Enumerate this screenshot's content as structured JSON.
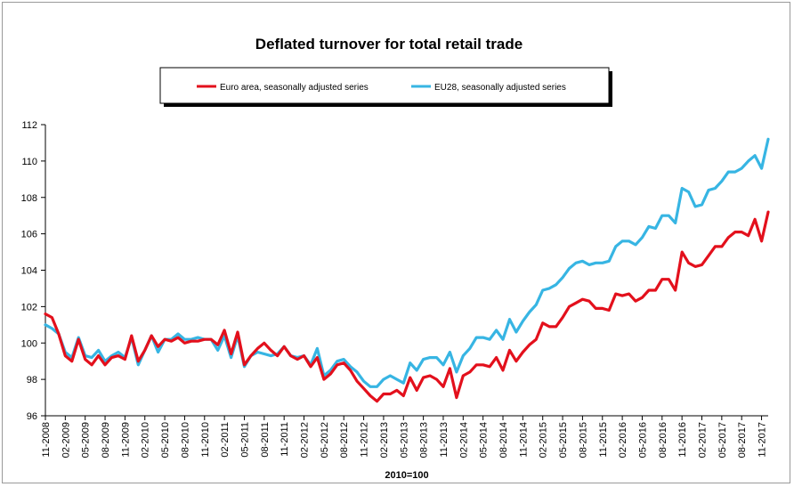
{
  "chart_data": {
    "type": "line",
    "title": "Deflated turnover for total retail trade",
    "xlabel": "2010=100",
    "ylabel": "",
    "ylim": [
      96,
      112
    ],
    "yticks": [
      96,
      98,
      100,
      102,
      104,
      106,
      108,
      110,
      112
    ],
    "grid": false,
    "legend_position": "top",
    "x_tick_labels": [
      "11-2008",
      "02-2009",
      "05-2009",
      "08-2009",
      "11-2009",
      "02-2010",
      "05-2010",
      "08-2010",
      "11-2010",
      "02-2011",
      "05-2011",
      "08-2011",
      "11-2011",
      "02-2012",
      "05-2012",
      "08-2012",
      "11-2012",
      "02-2013",
      "05-2013",
      "08-2013",
      "11-2013",
      "02-2014",
      "05-2014",
      "08-2014",
      "11-2014",
      "02-2015",
      "05-2015",
      "08-2015",
      "11-2015",
      "02-2016",
      "05-2016",
      "08-2016",
      "11-2016",
      "02-2017",
      "05-2017",
      "08-2017",
      "11-2017"
    ],
    "series": [
      {
        "name": "Euro area, seasonally adjusted series",
        "color": "#e3101c",
        "values": [
          101.6,
          101.4,
          100.5,
          99.3,
          99.0,
          100.2,
          99.1,
          98.8,
          99.3,
          98.8,
          99.2,
          99.3,
          99.1,
          100.4,
          99.0,
          99.6,
          100.4,
          99.8,
          100.2,
          100.1,
          100.3,
          100.0,
          100.1,
          100.1,
          100.2,
          100.2,
          99.9,
          100.7,
          99.4,
          100.6,
          98.8,
          99.3,
          99.7,
          100.0,
          99.6,
          99.3,
          99.8,
          99.3,
          99.1,
          99.3,
          98.7,
          99.2,
          98.0,
          98.3,
          98.8,
          98.9,
          98.5,
          97.9,
          97.5,
          97.1,
          96.8,
          97.2,
          97.2,
          97.4,
          97.1,
          98.1,
          97.4,
          98.1,
          98.2,
          98.0,
          97.6,
          98.6,
          97.0,
          98.2,
          98.4,
          98.8,
          98.8,
          98.7,
          99.2,
          98.5,
          99.6,
          99.0,
          99.5,
          99.9,
          100.2,
          101.1,
          100.9,
          100.9,
          101.4,
          102.0,
          102.2,
          102.4,
          102.3,
          101.9,
          101.9,
          101.8,
          102.7,
          102.6,
          102.7,
          102.3,
          102.5,
          102.9,
          102.9,
          103.5,
          103.5,
          102.9,
          105.0,
          104.4,
          104.2,
          104.3,
          104.8,
          105.3,
          105.3,
          105.8,
          106.1,
          106.1,
          105.9,
          106.8,
          105.6,
          107.2
        ]
      },
      {
        "name": "EU28, seasonally adjusted series",
        "color": "#37b5e3",
        "values": [
          101.0,
          100.8,
          100.5,
          99.5,
          99.2,
          100.3,
          99.3,
          99.2,
          99.6,
          99.0,
          99.3,
          99.5,
          99.2,
          100.3,
          98.8,
          99.6,
          100.4,
          99.5,
          100.2,
          100.2,
          100.5,
          100.2,
          100.2,
          100.3,
          100.2,
          100.2,
          99.6,
          100.4,
          99.2,
          100.4,
          98.7,
          99.3,
          99.5,
          99.4,
          99.3,
          99.4,
          99.8,
          99.3,
          99.2,
          99.3,
          98.8,
          99.7,
          98.2,
          98.5,
          99.0,
          99.1,
          98.7,
          98.4,
          97.9,
          97.6,
          97.6,
          98.0,
          98.2,
          98.0,
          97.8,
          98.9,
          98.5,
          99.1,
          99.2,
          99.2,
          98.8,
          99.5,
          98.4,
          99.3,
          99.7,
          100.3,
          100.3,
          100.2,
          100.7,
          100.2,
          101.3,
          100.6,
          101.2,
          101.7,
          102.1,
          102.9,
          103.0,
          103.2,
          103.6,
          104.1,
          104.4,
          104.5,
          104.3,
          104.4,
          104.4,
          104.5,
          105.3,
          105.6,
          105.6,
          105.4,
          105.8,
          106.4,
          106.3,
          107.0,
          107.0,
          106.6,
          108.5,
          108.3,
          107.5,
          107.6,
          108.4,
          108.5,
          108.9,
          109.4,
          109.4,
          109.6,
          110.0,
          110.3,
          109.6,
          111.2
        ]
      }
    ]
  }
}
